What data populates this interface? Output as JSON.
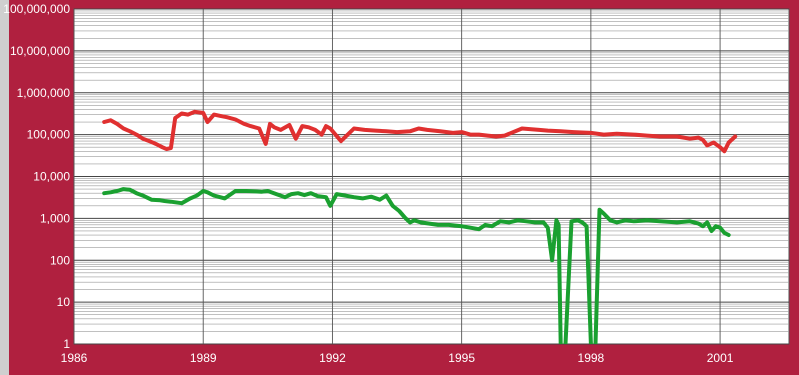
{
  "chart_data": {
    "type": "line",
    "title": "",
    "xlabel": "",
    "ylabel": "",
    "yscale": "log",
    "ylim": [
      1,
      100000000
    ],
    "xlim": [
      1986,
      2002.6
    ],
    "grid": true,
    "legend": "none",
    "background_color": "#b0203f",
    "plot_color": "#ffffff",
    "y_ticks": [
      {
        "value": 1,
        "label": "1"
      },
      {
        "value": 10,
        "label": "10"
      },
      {
        "value": 100,
        "label": "100"
      },
      {
        "value": 1000,
        "label": "1,000"
      },
      {
        "value": 10000,
        "label": "10,000"
      },
      {
        "value": 100000,
        "label": "100,000"
      },
      {
        "value": 1000000,
        "label": "1,000,000"
      },
      {
        "value": 10000000,
        "label": "10,000,000"
      },
      {
        "value": 100000000,
        "label": "100,000,000"
      }
    ],
    "x_ticks": [
      {
        "value": 1986,
        "label": "1986"
      },
      {
        "value": 1989,
        "label": "1989"
      },
      {
        "value": 1992,
        "label": "1992"
      },
      {
        "value": 1995,
        "label": "1995"
      },
      {
        "value": 1998,
        "label": "1998"
      },
      {
        "value": 2001,
        "label": "2001"
      }
    ],
    "series": [
      {
        "color": "#e03030",
        "x": [
          1986.7,
          1986.85,
          1987.0,
          1987.15,
          1987.3,
          1987.45,
          1987.6,
          1987.75,
          1987.9,
          1988.05,
          1988.15,
          1988.25,
          1988.35,
          1988.5,
          1988.65,
          1988.8,
          1989.0,
          1989.1,
          1989.25,
          1989.4,
          1989.55,
          1989.75,
          1989.95,
          1990.1,
          1990.3,
          1990.45,
          1990.55,
          1990.65,
          1990.8,
          1991.0,
          1991.15,
          1991.3,
          1991.45,
          1991.6,
          1991.75,
          1991.85,
          1991.95,
          1992.2,
          1992.5,
          1992.75,
          1993.0,
          1993.25,
          1993.5,
          1993.8,
          1994.0,
          1994.2,
          1994.5,
          1994.8,
          1995.0,
          1995.2,
          1995.4,
          1995.6,
          1995.8,
          1996.0,
          1996.4,
          1996.8,
          1997.0,
          1997.3,
          1997.6,
          1998.0,
          1998.3,
          1998.6,
          1999.0,
          1999.3,
          1999.6,
          2000.0,
          2000.3,
          2000.5,
          2000.6,
          2000.7,
          2000.85,
          2001.0,
          2001.1,
          2001.2,
          2001.35
        ],
        "values": [
          200000,
          220000,
          180000,
          140000,
          120000,
          100000,
          80000,
          70000,
          60000,
          50000,
          45000,
          48000,
          250000,
          320000,
          300000,
          350000,
          330000,
          200000,
          300000,
          280000,
          260000,
          230000,
          180000,
          160000,
          140000,
          60000,
          180000,
          150000,
          130000,
          170000,
          80000,
          160000,
          150000,
          130000,
          100000,
          160000,
          140000,
          70000,
          140000,
          130000,
          125000,
          120000,
          115000,
          120000,
          140000,
          130000,
          120000,
          110000,
          115000,
          100000,
          100000,
          95000,
          90000,
          95000,
          140000,
          130000,
          125000,
          120000,
          115000,
          110000,
          100000,
          105000,
          100000,
          95000,
          90000,
          90000,
          80000,
          85000,
          75000,
          55000,
          65000,
          50000,
          40000,
          65000,
          90000
        ]
      },
      {
        "color": "#1aa030",
        "x": [
          1986.7,
          1986.85,
          1987.0,
          1987.15,
          1987.3,
          1987.45,
          1987.6,
          1987.8,
          1988.0,
          1988.1,
          1988.25,
          1988.5,
          1988.7,
          1988.85,
          1989.0,
          1989.1,
          1989.25,
          1989.5,
          1989.75,
          1990.0,
          1990.2,
          1990.35,
          1990.5,
          1990.7,
          1990.9,
          1991.05,
          1991.2,
          1991.35,
          1991.5,
          1991.65,
          1991.85,
          1991.95,
          1992.1,
          1992.3,
          1992.5,
          1992.7,
          1992.9,
          1993.1,
          1993.25,
          1993.4,
          1993.55,
          1993.7,
          1993.8,
          1993.9,
          1994.05,
          1994.25,
          1994.45,
          1994.7,
          1995.0,
          1995.2,
          1995.4,
          1995.55,
          1995.7,
          1995.9,
          1996.1,
          1996.3,
          1996.5,
          1996.7,
          1996.9,
          1997.0,
          1997.1,
          1997.2,
          1997.25,
          1997.3,
          1997.4,
          1997.55,
          1997.7,
          1997.8,
          1997.9,
          1998.0,
          1998.1,
          1998.2,
          1998.3,
          1998.45,
          1998.6,
          1998.8,
          1999.0,
          1999.3,
          1999.6,
          2000.0,
          2000.3,
          2000.5,
          2000.6,
          2000.7,
          2000.8,
          2000.9,
          2001.0,
          2001.1,
          2001.2
        ],
        "values": [
          4000,
          4200,
          4500,
          5000,
          4800,
          4000,
          3500,
          2800,
          2700,
          2600,
          2500,
          2300,
          3000,
          3500,
          4500,
          4200,
          3500,
          3000,
          4500,
          4500,
          4400,
          4300,
          4500,
          3800,
          3200,
          3800,
          4000,
          3600,
          4000,
          3400,
          3200,
          2000,
          3800,
          3500,
          3200,
          3000,
          3300,
          2800,
          3500,
          2000,
          1500,
          1000,
          800,
          900,
          800,
          750,
          700,
          700,
          650,
          600,
          550,
          700,
          650,
          850,
          800,
          900,
          850,
          800,
          800,
          600,
          100,
          900,
          700,
          1,
          0.5,
          850,
          900,
          800,
          650,
          1,
          0.5,
          1600,
          1300,
          900,
          800,
          900,
          850,
          900,
          850,
          800,
          850,
          750,
          650,
          800,
          500,
          650,
          600,
          450,
          400
        ]
      }
    ]
  }
}
